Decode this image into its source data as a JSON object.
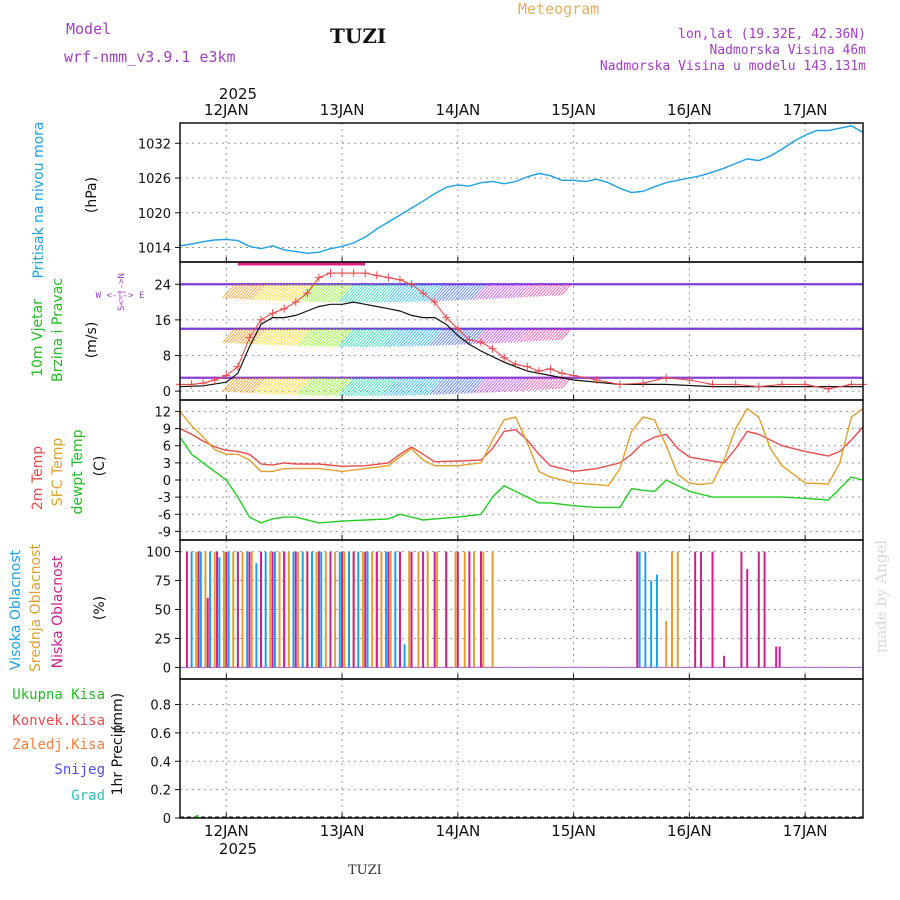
{
  "header": {
    "model_label": "Model",
    "model_name": "wrf-nmm_v3.9.1 e3km",
    "station": "TUZI",
    "product": "Meteogram",
    "coords": "lon,lat (19.32E, 42.36N)",
    "elevation": "Nadmorska Visina 46m",
    "model_elevation": "Nadmorska Visina u modelu 143.131m",
    "year_top": "2025",
    "year_bottom": "2025",
    "footer_station": "TUZI",
    "credit": "made by Angel"
  },
  "colors": {
    "pressure": "#1ea0e6",
    "temp2m": "#e84c4c",
    "sfc_temp": "#e0a030",
    "dewpoint": "#22cc22",
    "gust": "#e84c4c",
    "wind": "#111111",
    "high_cloud": "#1ea0e6",
    "mid_cloud": "#e0a030",
    "low_cloud": "#cc2090",
    "purple": "#a040c0"
  },
  "chart_data": [
    {
      "type": "line",
      "name": "pressure",
      "ylabel_main": "Pritisak na nivou mora",
      "ylabel_unit": "(hPa)",
      "yticks": [
        1014,
        1020,
        1026,
        1032
      ],
      "ylim": [
        1011.5,
        1035.5
      ],
      "xlim": [
        11.6,
        17.5
      ],
      "xticks": [
        12,
        13,
        14,
        15,
        16,
        17
      ],
      "xtick_labels": [
        "12JAN",
        "13JAN",
        "14JAN",
        "15JAN",
        "16JAN",
        "17JAN"
      ],
      "series": [
        {
          "name": "Pritisak na nivou mora",
          "x": [
            11.6,
            11.7,
            11.8,
            11.9,
            12.0,
            12.1,
            12.2,
            12.3,
            12.4,
            12.5,
            12.6,
            12.7,
            12.8,
            12.9,
            13.0,
            13.1,
            13.2,
            13.3,
            13.4,
            13.5,
            13.6,
            13.7,
            13.8,
            13.9,
            14.0,
            14.1,
            14.2,
            14.3,
            14.4,
            14.5,
            14.6,
            14.7,
            14.8,
            14.9,
            15.0,
            15.1,
            15.2,
            15.3,
            15.4,
            15.5,
            15.6,
            15.7,
            15.8,
            15.9,
            16.0,
            16.1,
            16.2,
            16.3,
            16.4,
            16.5,
            16.6,
            16.7,
            16.8,
            16.9,
            17.0,
            17.1,
            17.2,
            17.3,
            17.4,
            17.5
          ],
          "values": [
            1014.3,
            1014.6,
            1015.0,
            1015.3,
            1015.4,
            1015.2,
            1014.2,
            1013.8,
            1014.3,
            1013.6,
            1013.3,
            1013.0,
            1013.2,
            1013.8,
            1014.2,
            1014.8,
            1015.8,
            1017.2,
            1018.4,
            1019.6,
            1020.8,
            1022.0,
            1023.3,
            1024.4,
            1024.8,
            1024.6,
            1025.2,
            1025.4,
            1025.0,
            1025.4,
            1026.2,
            1026.8,
            1026.4,
            1025.6,
            1025.6,
            1025.4,
            1025.8,
            1025.2,
            1024.2,
            1023.5,
            1023.7,
            1024.5,
            1025.2,
            1025.6,
            1026.0,
            1026.4,
            1027.0,
            1027.7,
            1028.5,
            1029.3,
            1029.0,
            1029.8,
            1031.0,
            1032.3,
            1033.4,
            1034.2,
            1034.2,
            1034.6,
            1035.0,
            1033.9
          ]
        }
      ]
    },
    {
      "type": "line",
      "name": "wind",
      "ylabel_main": "10m Vjetar",
      "ylabel_sub": "Brzina i Pravac",
      "ylabel_unit": "(m/s)",
      "compass": "W <-|-> E",
      "compass_v": "S<-|->N",
      "yticks": [
        0,
        8,
        16,
        24
      ],
      "ylim": [
        -2,
        29
      ],
      "xlim": [
        11.6,
        17.5
      ],
      "series": [
        {
          "name": "Udari (gust)",
          "x": [
            11.6,
            11.7,
            11.8,
            11.9,
            12.0,
            12.1,
            12.2,
            12.3,
            12.4,
            12.5,
            12.6,
            12.7,
            12.8,
            12.9,
            13.0,
            13.1,
            13.2,
            13.3,
            13.4,
            13.5,
            13.6,
            13.7,
            13.8,
            13.9,
            14.0,
            14.1,
            14.2,
            14.3,
            14.4,
            14.5,
            14.6,
            14.7,
            14.8,
            14.9,
            15.0,
            15.2,
            15.4,
            15.6,
            15.8,
            16.0,
            16.2,
            16.4,
            16.6,
            16.8,
            17.0,
            17.2,
            17.4,
            17.5
          ],
          "values": [
            1.5,
            1.5,
            1.8,
            2.5,
            3.5,
            5.5,
            12.0,
            16.0,
            17.5,
            18.5,
            20.0,
            22.0,
            25.5,
            26.5,
            26.5,
            26.5,
            26.5,
            26.0,
            25.5,
            25.0,
            24.0,
            22.0,
            20.0,
            16.5,
            14.0,
            11.5,
            11.0,
            9.5,
            7.5,
            6.0,
            5.5,
            4.5,
            5.0,
            4.0,
            3.5,
            2.5,
            1.5,
            1.8,
            3.0,
            2.5,
            1.5,
            1.5,
            1.0,
            1.5,
            1.5,
            0.5,
            1.5,
            1.5
          ]
        },
        {
          "name": "Brzina (speed)",
          "x": [
            11.6,
            11.8,
            12.0,
            12.1,
            12.2,
            12.3,
            12.4,
            12.5,
            12.6,
            12.7,
            12.8,
            12.9,
            13.0,
            13.1,
            13.2,
            13.3,
            13.4,
            13.5,
            13.6,
            13.7,
            13.8,
            13.9,
            14.0,
            14.1,
            14.2,
            14.4,
            14.6,
            14.8,
            15.0,
            15.4,
            15.8,
            16.2,
            16.6,
            17.0,
            17.5
          ],
          "values": [
            1.0,
            1.2,
            2.0,
            4.0,
            10.0,
            15.0,
            16.5,
            16.5,
            17.0,
            18.0,
            19.0,
            19.5,
            19.5,
            20.0,
            19.5,
            19.0,
            18.5,
            18.0,
            17.0,
            16.5,
            16.5,
            15.0,
            12.5,
            10.5,
            9.0,
            6.5,
            4.5,
            3.5,
            2.5,
            1.5,
            1.5,
            1.0,
            1.0,
            1.0,
            1.0
          ]
        }
      ]
    },
    {
      "type": "line",
      "name": "temperature",
      "ylabel_a": "2m Temp",
      "ylabel_b": "SFC Temp",
      "ylabel_c": "dewpt Temp",
      "ylabel_unit": "(C)",
      "yticks": [
        -9,
        -6,
        -3,
        0,
        3,
        6,
        9,
        12
      ],
      "ylim": [
        -10.5,
        14
      ],
      "xlim": [
        11.6,
        17.5
      ],
      "series": [
        {
          "name": "2m Temp",
          "x": [
            11.6,
            11.7,
            11.8,
            11.9,
            12.0,
            12.1,
            12.2,
            12.3,
            12.4,
            12.5,
            12.6,
            12.8,
            13.0,
            13.2,
            13.4,
            13.5,
            13.6,
            13.7,
            13.8,
            14.0,
            14.2,
            14.3,
            14.4,
            14.5,
            14.6,
            14.7,
            14.8,
            15.0,
            15.2,
            15.4,
            15.5,
            15.6,
            15.7,
            15.8,
            15.9,
            16.0,
            16.2,
            16.3,
            16.4,
            16.5,
            16.6,
            16.8,
            17.0,
            17.2,
            17.3,
            17.4,
            17.5
          ],
          "values": [
            9.0,
            8.0,
            6.8,
            5.8,
            5.2,
            5.0,
            4.5,
            2.8,
            2.6,
            3.0,
            2.8,
            2.8,
            2.4,
            2.5,
            3.0,
            4.5,
            5.8,
            4.5,
            3.2,
            3.3,
            3.5,
            5.5,
            8.5,
            8.8,
            7.0,
            4.5,
            2.5,
            1.5,
            2.0,
            3.0,
            4.5,
            6.5,
            7.5,
            8.0,
            5.5,
            4.0,
            3.3,
            3.0,
            5.5,
            8.5,
            8.0,
            6.0,
            5.0,
            4.2,
            5.0,
            7.0,
            9.3
          ]
        },
        {
          "name": "SFC Temp",
          "x": [
            11.6,
            11.7,
            11.8,
            11.9,
            12.0,
            12.1,
            12.2,
            12.3,
            12.4,
            12.5,
            12.6,
            12.8,
            13.0,
            13.2,
            13.4,
            13.5,
            13.6,
            13.7,
            13.8,
            14.0,
            14.2,
            14.3,
            14.4,
            14.5,
            14.6,
            14.7,
            14.8,
            15.0,
            15.2,
            15.3,
            15.4,
            15.5,
            15.6,
            15.7,
            15.8,
            15.9,
            16.0,
            16.1,
            16.2,
            16.3,
            16.4,
            16.5,
            16.6,
            16.7,
            16.8,
            17.0,
            17.2,
            17.3,
            17.4,
            17.5
          ],
          "values": [
            12.0,
            9.5,
            7.5,
            5.3,
            4.5,
            4.5,
            3.5,
            1.5,
            1.5,
            2.0,
            2.0,
            2.0,
            1.5,
            2.0,
            2.5,
            4.0,
            5.5,
            3.5,
            2.5,
            2.5,
            3.0,
            7.0,
            10.5,
            11.0,
            6.5,
            1.5,
            0.5,
            -0.5,
            -0.8,
            -1.0,
            2.0,
            8.5,
            11.0,
            10.5,
            6.0,
            1.0,
            -0.5,
            -0.8,
            -0.5,
            3.5,
            9.0,
            12.5,
            11.0,
            5.5,
            2.5,
            -0.5,
            -0.7,
            3.0,
            11.0,
            12.5
          ]
        },
        {
          "name": "dewpt Temp",
          "x": [
            11.6,
            11.7,
            11.8,
            11.9,
            12.0,
            12.1,
            12.2,
            12.3,
            12.4,
            12.5,
            12.6,
            12.8,
            13.0,
            13.2,
            13.4,
            13.5,
            13.6,
            13.7,
            13.8,
            14.0,
            14.2,
            14.3,
            14.4,
            14.5,
            14.6,
            14.7,
            14.8,
            15.0,
            15.2,
            15.4,
            15.5,
            15.6,
            15.7,
            15.8,
            16.0,
            16.2,
            16.4,
            16.6,
            16.8,
            17.0,
            17.2,
            17.3,
            17.4,
            17.5
          ],
          "values": [
            7.5,
            4.5,
            3.0,
            1.5,
            0.0,
            -3.0,
            -6.5,
            -7.5,
            -6.8,
            -6.5,
            -6.5,
            -7.5,
            -7.2,
            -7.0,
            -6.8,
            -6.0,
            -6.5,
            -7.0,
            -6.8,
            -6.5,
            -6.0,
            -3.0,
            -1.0,
            -2.0,
            -3.0,
            -4.0,
            -4.0,
            -4.5,
            -4.8,
            -4.8,
            -1.5,
            -1.8,
            -2.0,
            0.0,
            -2.0,
            -3.0,
            -3.0,
            -3.0,
            -3.0,
            -3.2,
            -3.5,
            -1.5,
            0.5,
            0.0
          ]
        }
      ]
    },
    {
      "type": "bar",
      "name": "clouds",
      "ylabel_a": "Visoka Oblacnost",
      "ylabel_b": "Srednja Oblacnost",
      "ylabel_c": "Niska Oblacnost",
      "ylabel_unit": "(%)",
      "yticks": [
        0,
        25,
        50,
        75,
        100
      ],
      "ylim": [
        -10,
        110
      ],
      "xlim": [
        11.6,
        17.5
      ],
      "series": [
        {
          "name": "Visoka Oblacnost",
          "x": [
            11.7,
            11.78,
            11.86,
            11.94,
            12.02,
            12.1,
            12.18,
            12.26,
            12.34,
            12.42,
            12.5,
            12.58,
            12.66,
            12.74,
            12.82,
            12.9,
            12.98,
            13.06,
            13.14,
            13.22,
            13.3,
            13.38,
            13.46,
            13.54,
            15.57,
            15.62,
            15.67,
            15.72
          ],
          "values": [
            100,
            100,
            100,
            95,
            100,
            100,
            100,
            90,
            100,
            100,
            100,
            100,
            100,
            100,
            100,
            100,
            100,
            100,
            100,
            100,
            95,
            100,
            100,
            20,
            100,
            100,
            75,
            80
          ]
        },
        {
          "name": "Srednja Oblacnost",
          "x": [
            11.74,
            11.82,
            11.9,
            11.98,
            12.06,
            12.14,
            12.22,
            12.3,
            12.38,
            12.46,
            12.54,
            12.62,
            12.7,
            12.78,
            12.86,
            12.94,
            13.02,
            13.1,
            13.18,
            13.26,
            13.34,
            13.42,
            13.5,
            13.58,
            13.66,
            13.74,
            13.82,
            13.9,
            13.98,
            14.06,
            14.14,
            14.22,
            14.3,
            15.8,
            15.85,
            15.9
          ],
          "values": [
            100,
            100,
            100,
            100,
            100,
            100,
            100,
            100,
            100,
            100,
            100,
            100,
            100,
            100,
            100,
            100,
            100,
            100,
            100,
            100,
            100,
            100,
            100,
            100,
            100,
            100,
            100,
            100,
            100,
            100,
            100,
            100,
            100,
            40,
            100,
            100
          ]
        },
        {
          "name": "Niska Oblacnost",
          "x": [
            11.66,
            11.76,
            11.84,
            11.92,
            12.0,
            12.1,
            12.2,
            12.3,
            12.4,
            12.5,
            12.6,
            12.7,
            12.8,
            12.9,
            13.0,
            13.1,
            13.2,
            13.3,
            13.4,
            13.5,
            13.6,
            13.7,
            13.8,
            13.9,
            14.0,
            14.1,
            14.2,
            15.55,
            16.05,
            16.1,
            16.2,
            16.3,
            16.45,
            16.5,
            16.6,
            16.65,
            16.75,
            16.78
          ],
          "values": [
            100,
            100,
            60,
            100,
            100,
            100,
            100,
            100,
            100,
            100,
            100,
            100,
            100,
            100,
            100,
            100,
            100,
            100,
            100,
            100,
            100,
            100,
            100,
            100,
            100,
            100,
            100,
            100,
            100,
            100,
            100,
            10,
            100,
            85,
            100,
            100,
            18,
            18
          ]
        }
      ]
    },
    {
      "type": "bar",
      "name": "precipitation",
      "legend": [
        "Ukupna Kisa",
        "Konvek.Kisa",
        "Zaledj.Kisa",
        "Snijeg",
        "Grad"
      ],
      "ylabel_a": "1hr Precip",
      "ylabel_unit": "(mm)",
      "yticks": [
        0,
        0.2,
        0.4,
        0.6,
        0.8
      ],
      "ytick_labels": [
        "0",
        "0.2",
        "0.4",
        "0.6",
        "0.8"
      ],
      "ylim": [
        0,
        0.98
      ],
      "xlim": [
        11.6,
        17.5
      ],
      "series": [
        {
          "name": "Ukupna Kisa",
          "x": [
            11.75
          ],
          "values": [
            0.02
          ]
        }
      ]
    }
  ]
}
